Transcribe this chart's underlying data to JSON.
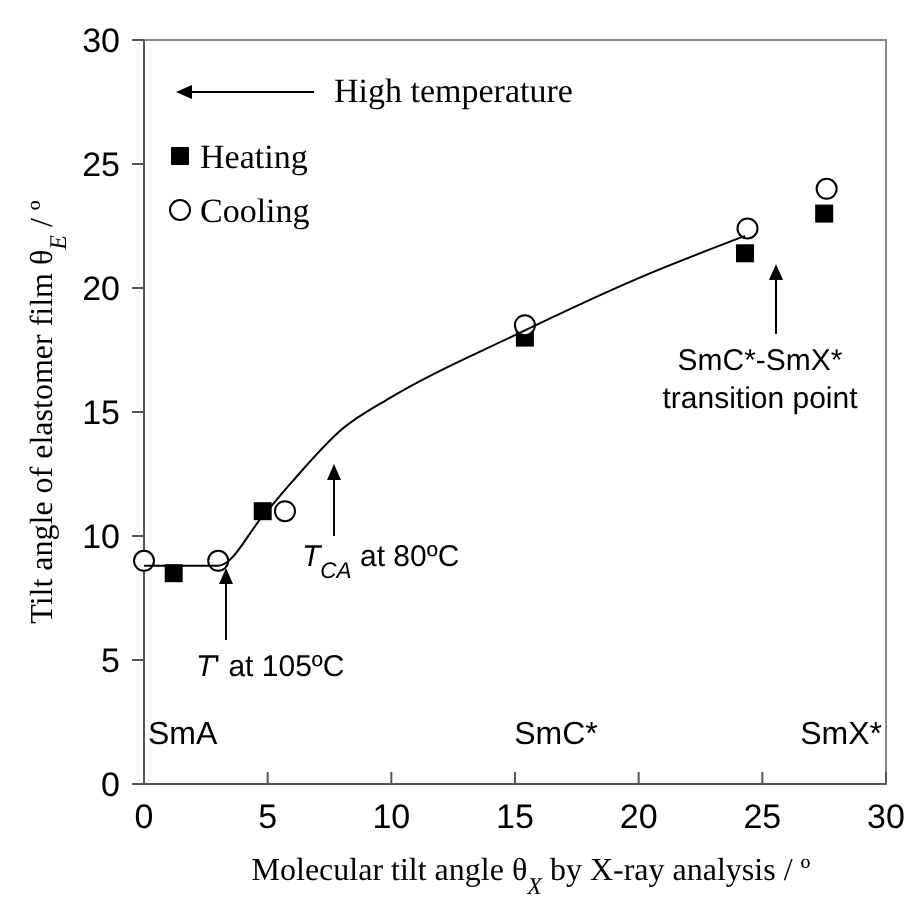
{
  "chart_data": {
    "type": "scatter",
    "xlabel": "Molecular tilt angle θ$_{X}$ by X-ray analysis / º",
    "ylabel": "Tilt angle of elastomer film θ$_{E}$ / º",
    "xlim": [
      0,
      30
    ],
    "ylim": [
      0,
      30
    ],
    "xticks": [
      0,
      5,
      10,
      15,
      20,
      25,
      30
    ],
    "yticks": [
      0,
      5,
      10,
      15,
      20,
      25,
      30
    ],
    "legend": "top left",
    "grid": false,
    "series": [
      {
        "name": "Heating",
        "color": "#000000",
        "marker": "square",
        "x": [
          1.2,
          4.8,
          15.4,
          24.3,
          27.5
        ],
        "values": [
          8.5,
          11,
          18,
          21.4,
          23
        ]
      },
      {
        "name": "Cooling",
        "color": "#000000",
        "marker": "circle",
        "x": [
          0,
          3,
          5.7,
          15.4,
          24.4,
          27.6
        ],
        "values": [
          9,
          9,
          11,
          18.5,
          22.4,
          24
        ]
      },
      {
        "type": "line",
        "color": "#000000",
        "marker": "none",
        "line_style": "solid",
        "x": [
          0,
          3,
          4.8,
          6,
          8,
          10,
          15,
          20,
          24.3
        ],
        "values": [
          8.8,
          8.8,
          10.8,
          12.2,
          14.3,
          15.6,
          18.1,
          20.4,
          22.1
        ]
      }
    ],
    "annotations": [
      "High temperature",
      "T' at 105ºC",
      "T$_{CA}$ at 80ºC",
      "SmC*-SmX*\ntransition point",
      "SmA",
      "SmC*",
      "SmX*"
    ]
  }
}
